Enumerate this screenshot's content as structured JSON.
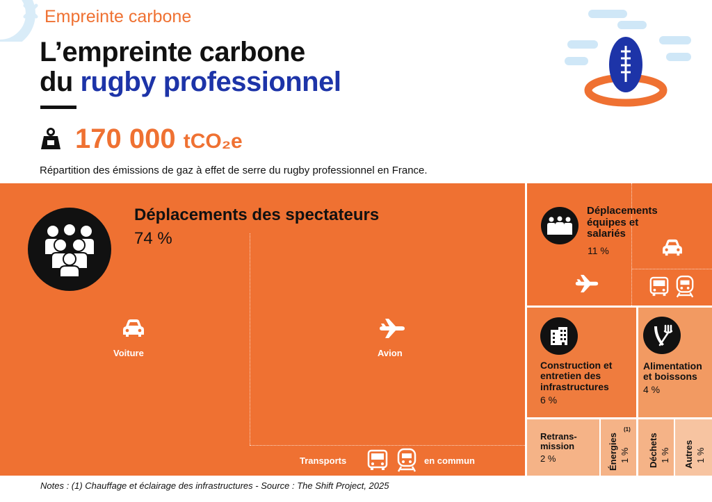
{
  "header": {
    "category": "Empreinte carbone",
    "title_line1": "L’empreinte carbone",
    "title_line2_prefix": "du ",
    "title_line2_highlight": "rugby professionnel",
    "total_value": "170 000",
    "total_unit": "tCO₂e",
    "subtitle": "Répartition des émissions de gaz à effet de serre du rugby professionnel en France."
  },
  "icons": {
    "logo": "rugby-ball-icon",
    "total": "weight-icon",
    "spectators": "crowd-icon",
    "teams": "team-icon",
    "construction": "building-icon",
    "food": "cutlery-icon",
    "car": "car-icon",
    "plane": "plane-icon",
    "bus": "bus-icon",
    "train": "train-icon"
  },
  "colors": {
    "accent": "#ef7132",
    "title_highlight": "#1d34a8",
    "text": "#111111"
  },
  "chart_data": {
    "type": "treemap",
    "unit": "%",
    "categories": [
      {
        "name": "Déplacements des spectateurs",
        "value": 74,
        "value_label": "74 %",
        "sub_items": [
          "Voiture",
          "Avion"
        ],
        "transport_label_left": "Transports",
        "transport_label_right": "en commun"
      },
      {
        "name": "Déplacements équipes et salariés",
        "value": 11,
        "value_label": "11 %"
      },
      {
        "name": "Construction et entretien des infrastructures",
        "value": 6,
        "value_label": "6 %"
      },
      {
        "name": "Alimentation et boissons",
        "value": 4,
        "value_label": "4 %"
      },
      {
        "name": "Retrans- mission",
        "value": 2,
        "value_label": "2 %"
      },
      {
        "name": "Énergies",
        "footnote": "(1)",
        "value": 1,
        "value_label": "1 %"
      },
      {
        "name": "Déchets",
        "value": 1,
        "value_label": "1 %"
      },
      {
        "name": "Autres",
        "value": 1,
        "value_label": "1 %"
      }
    ]
  },
  "labels": {
    "spectators_line1": "Déplacements des spectateurs",
    "teams_line1": "Déplacements",
    "teams_line2": "équipes et",
    "teams_line3": "salariés",
    "construction_line1": "Construction et",
    "construction_line2": "entretien des",
    "construction_line3": "infrastructures",
    "food_line1": "Alimentation",
    "food_line2": "et boissons",
    "retrans_line1": "Retrans-",
    "retrans_line2": "mission"
  },
  "notes": "Notes : (1) Chauffage et éclairage des infrastructures - Source : The Shift Project, 2025"
}
